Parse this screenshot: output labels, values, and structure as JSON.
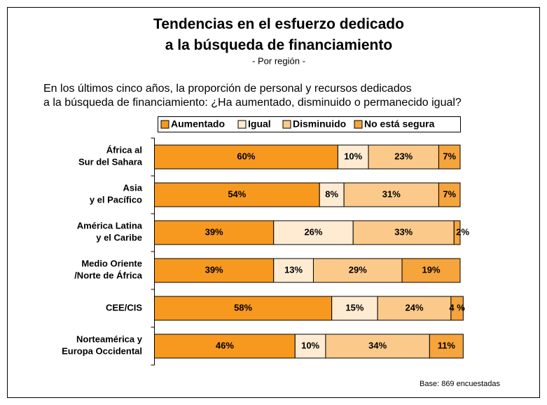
{
  "chart_data": {
    "type": "stacked-barh",
    "title": "Tendencias en el esfuerzo dedicado\na la búsqueda de financiamiento",
    "subtitle": "- Por región -",
    "question": "En los últimos cinco años, la proporción de personal y recursos dedicados\na la búsqueda de financiamiento: ¿Ha aumentado, disminuido o permanecido igual?",
    "note": "Base: 869 encuestadas",
    "categories": [
      "África al\nSur del Sahara",
      "Asia\ny el Pacífico",
      "América Latina\ny el Caribe",
      "Medio Oriente\n/Norte de África",
      "CEE/CIS",
      "Norteamérica y\nEuropa Occidental"
    ],
    "xlim": [
      0,
      100
    ],
    "series": [
      {
        "name": "Aumentado",
        "color": "#f7981f",
        "values": [
          60,
          54,
          39,
          39,
          58,
          46
        ],
        "value_labels": [
          "60%",
          "54%",
          "39%",
          "39%",
          "58%",
          "46%"
        ]
      },
      {
        "name": "Igual",
        "color": "#feebd2",
        "values": [
          10,
          8,
          26,
          13,
          15,
          10
        ],
        "value_labels": [
          "10%",
          "8%",
          "26%",
          "13%",
          "15%",
          "10%"
        ]
      },
      {
        "name": "Disminuido",
        "color": "#fbc98a",
        "values": [
          23,
          31,
          33,
          29,
          24,
          34
        ],
        "value_labels": [
          "23%",
          "31%",
          "33%",
          "29%",
          "24%",
          "34%"
        ]
      },
      {
        "name": "No está segura",
        "color": "#f6a43c",
        "values": [
          7,
          7,
          2,
          19,
          4,
          11
        ],
        "value_labels": [
          "7%",
          "7%",
          "2%",
          "19%",
          "4 %",
          "11%"
        ]
      }
    ]
  }
}
